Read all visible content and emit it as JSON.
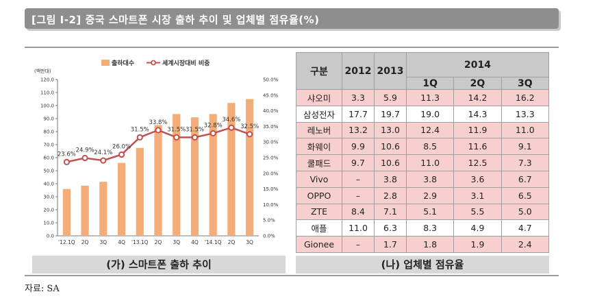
{
  "title": "[그림 I-2] 중국 스마트폰 시장 출하 추이 및 업체별 점유율(%)",
  "chart_data": {
    "type": "bar",
    "title": "",
    "legend": [
      "출하대수",
      "세계시장대비 비중"
    ],
    "y_left_label": "(백만대)",
    "categories": [
      "'12.1Q",
      "2Q",
      "3Q",
      "4Q",
      "'13.1Q",
      "2Q",
      "3Q",
      "4Q",
      "'14.1Q",
      "2Q",
      "3Q"
    ],
    "y_left_ticks": [
      "0.0",
      "10.0",
      "20.0",
      "30.0",
      "40.0",
      "50.0",
      "60.0",
      "70.0",
      "80.0",
      "90.0",
      "100.0",
      "110.0",
      "120.0"
    ],
    "y_right_ticks": [
      "0.0%",
      "5.0%",
      "10.0%",
      "15.0%",
      "20.0%",
      "25.0%",
      "30.0%",
      "35.0%",
      "40.0%",
      "45.0%",
      "50.0%"
    ],
    "ylim_left": [
      0,
      120
    ],
    "ylim_right": [
      0,
      50
    ],
    "series": [
      {
        "name": "출하대수",
        "kind": "bar",
        "axis": "left",
        "values": [
          36,
          38.5,
          41.5,
          56,
          67.5,
          85,
          93.5,
          91,
          93.5,
          102,
          105
        ]
      },
      {
        "name": "세계시장대비 비중",
        "kind": "line",
        "axis": "right",
        "values": [
          23.6,
          24.9,
          24.1,
          26.0,
          31.5,
          33.8,
          31.5,
          31.5,
          32.8,
          34.6,
          32.5
        ],
        "labels": [
          "23.6%",
          "24.9%",
          "24.1%",
          "26.0%",
          "31.5%",
          "33.8%",
          "31.5%",
          "31.5%",
          "32.8%",
          "34.6%",
          "32.5%"
        ]
      }
    ],
    "colors": {
      "bar": "#f4ad78",
      "line": "#c0504d"
    }
  },
  "table": {
    "header": {
      "col0": "구분",
      "y2012": "2012",
      "y2013": "2013",
      "y2014": "2014",
      "q1": "1Q",
      "q2": "2Q",
      "q3": "3Q"
    },
    "rows": [
      {
        "name": "샤오미",
        "v": [
          "3.3",
          "5.9",
          "11.3",
          "14.2",
          "16.2"
        ],
        "highlight": true
      },
      {
        "name": "삼성전자",
        "v": [
          "17.7",
          "19.7",
          "19.0",
          "14.3",
          "13.3"
        ],
        "highlight": false
      },
      {
        "name": "레노버",
        "v": [
          "13.2",
          "13.0",
          "12.4",
          "11.9",
          "11.0"
        ],
        "highlight": true
      },
      {
        "name": "화웨이",
        "v": [
          "9.9",
          "10.6",
          "8.5",
          "11.6",
          "9.1"
        ],
        "highlight": true
      },
      {
        "name": "쿨패드",
        "v": [
          "9.7",
          "10.6",
          "11.0",
          "12.5",
          "7.3"
        ],
        "highlight": true
      },
      {
        "name": "Vivo",
        "v": [
          "–",
          "3.8",
          "3.8",
          "3.6",
          "6.7"
        ],
        "highlight": true
      },
      {
        "name": "OPPO",
        "v": [
          "–",
          "2.8",
          "2.9",
          "3.1",
          "6.5"
        ],
        "highlight": true
      },
      {
        "name": "ZTE",
        "v": [
          "8.4",
          "7.1",
          "5.1",
          "5.5",
          "5.0"
        ],
        "highlight": true
      },
      {
        "name": "애플",
        "v": [
          "11.0",
          "6.3",
          "8.3",
          "4.9",
          "4.7"
        ],
        "highlight": false
      },
      {
        "name": "Gionee",
        "v": [
          "–",
          "1.7",
          "1.8",
          "1.9",
          "2.4"
        ],
        "highlight": true
      }
    ]
  },
  "captions": {
    "left": "(가) 스마트폰 출하 추이",
    "right": "(나) 업체별 점유율"
  },
  "source": "자료: SA"
}
